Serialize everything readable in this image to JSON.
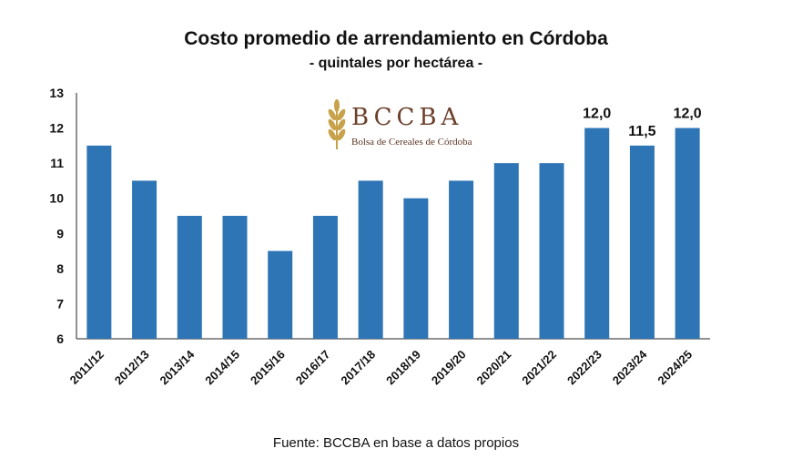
{
  "title": "Costo promedio de arrendamiento en Córdoba",
  "subtitle": "- quintales por hectárea -",
  "source": "Fuente: BCCBA en base a datos propios",
  "logo": {
    "name": "BCCBA",
    "tagline": "Bolsa de Cereales de Córdoba",
    "icon": "wheat-icon",
    "color": "#c8a24a"
  },
  "chart_data": {
    "type": "bar",
    "categories": [
      "2011/12",
      "2012/13",
      "2013/14",
      "2014/15",
      "2015/16",
      "2016/17",
      "2017/18",
      "2018/19",
      "2019/20",
      "2020/21",
      "2021/22",
      "2022/23",
      "2023/24",
      "2024/25"
    ],
    "values": [
      11.5,
      10.5,
      9.5,
      9.5,
      8.5,
      9.5,
      10.5,
      10.0,
      10.5,
      11.0,
      11.0,
      12.0,
      11.5,
      12.0
    ],
    "data_labels": [
      null,
      null,
      null,
      null,
      null,
      null,
      null,
      null,
      null,
      null,
      null,
      "12,0",
      "11,5",
      "12,0"
    ],
    "ylim": [
      6,
      13
    ],
    "yticks": [
      "6",
      "7",
      "8",
      "9",
      "10",
      "11",
      "12",
      "13"
    ],
    "bar_color": "#2e75b6",
    "grid": false,
    "legend": false
  }
}
